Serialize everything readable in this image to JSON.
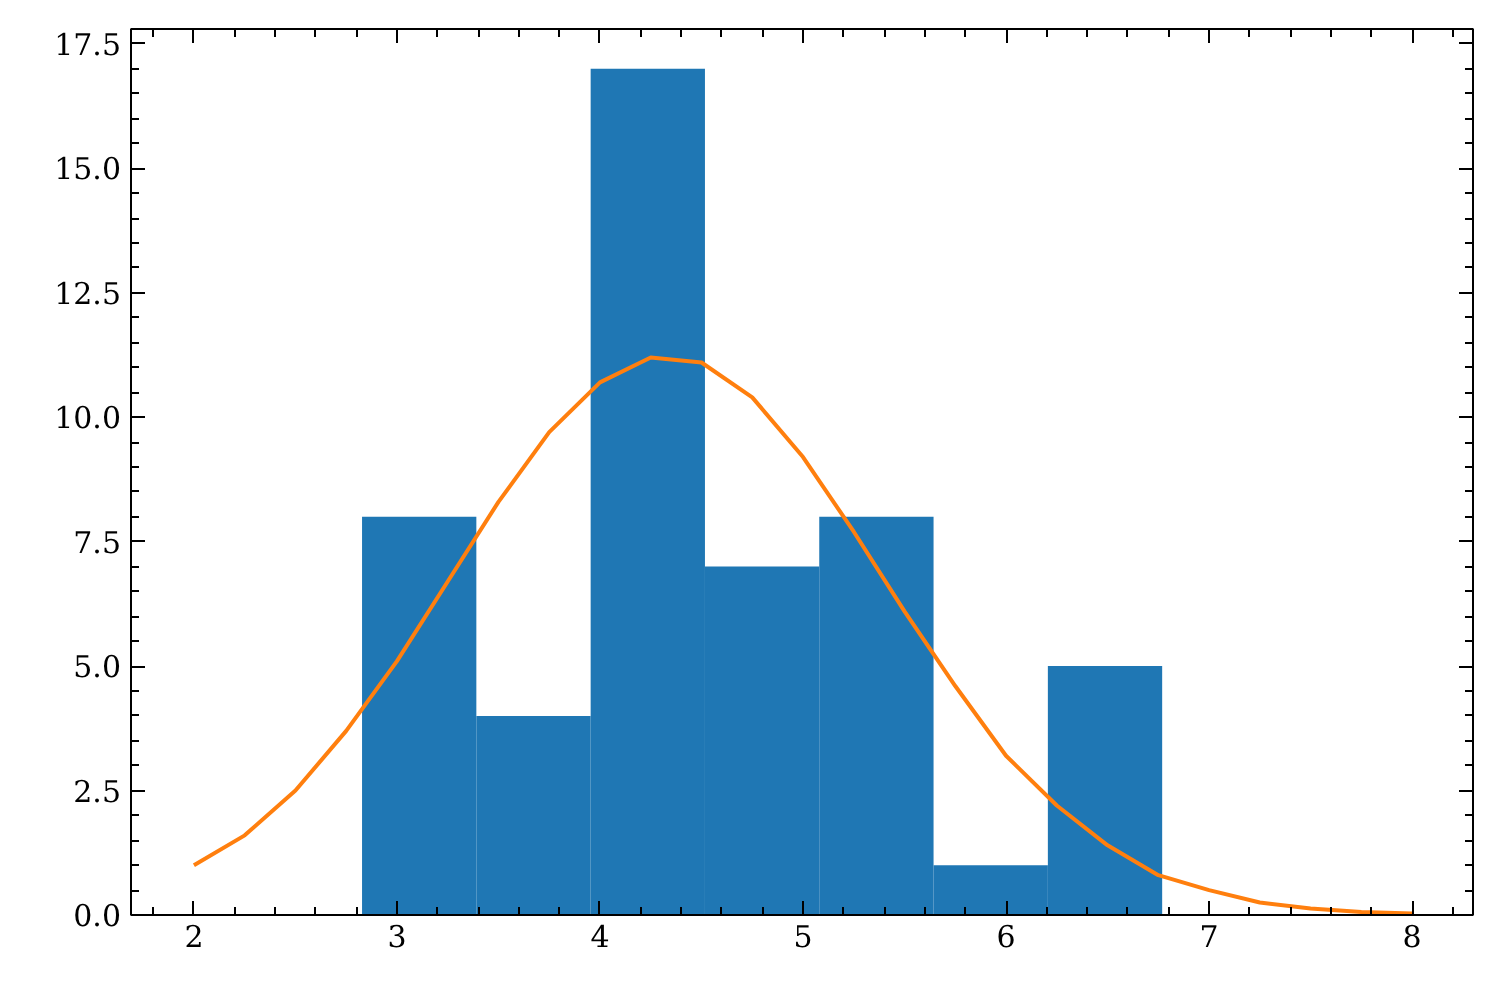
{
  "chart_data": {
    "type": "histogram",
    "bins": [
      2.828,
      3.391,
      3.954,
      4.517,
      5.08,
      5.643,
      6.206,
      6.769
    ],
    "values": [
      8,
      4,
      17,
      7,
      8,
      1,
      5
    ],
    "color": "#1f77b4",
    "series": [
      {
        "type": "line",
        "color": "#ff7f0e",
        "x": [
          2,
          2.25,
          2.5,
          2.75,
          3,
          3.25,
          3.5,
          3.75,
          4,
          4.25,
          4.5,
          4.75,
          5,
          5.25,
          5.5,
          5.75,
          6,
          6.25,
          6.5,
          6.75,
          7,
          7.25,
          7.5,
          7.75,
          8
        ],
        "values": [
          1.0,
          1.6,
          2.5,
          3.7,
          5.1,
          6.7,
          8.3,
          9.7,
          10.7,
          11.2,
          11.1,
          10.4,
          9.2,
          7.7,
          6.1,
          4.6,
          3.2,
          2.2,
          1.4,
          0.8,
          0.5,
          0.25,
          0.13,
          0.06,
          0.03
        ]
      }
    ],
    "xlim": [
      1.69,
      8.3
    ],
    "ylim": [
      0,
      17.8
    ],
    "xticks": [
      2,
      3,
      4,
      5,
      6,
      7,
      8
    ],
    "yticks": [
      {
        "value": 0,
        "label": "0.0"
      },
      {
        "value": 2.5,
        "label": "2.5"
      },
      {
        "value": 5,
        "label": "5.0"
      },
      {
        "value": 7.5,
        "label": "7.5"
      },
      {
        "value": 10,
        "label": "10.0"
      },
      {
        "value": 12.5,
        "label": "12.5"
      },
      {
        "value": 15,
        "label": "15.0"
      },
      {
        "value": 17.5,
        "label": "17.5"
      }
    ],
    "grid": false
  }
}
